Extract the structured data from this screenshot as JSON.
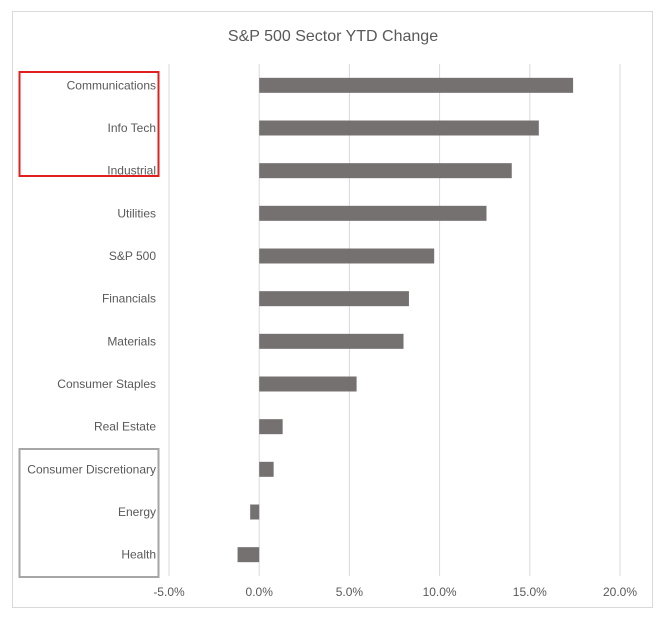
{
  "chart_data": {
    "type": "bar",
    "orientation": "horizontal",
    "title": "S&P 500 Sector YTD Change",
    "categories": [
      "Communications",
      "Info Tech",
      "Industrial",
      "Utilities",
      "S&P 500",
      "Financials",
      "Materials",
      "Consumer Staples",
      "Real Estate",
      "Consumer Discretionary",
      "Energy",
      "Health"
    ],
    "values": [
      17.4,
      15.5,
      14.0,
      12.6,
      9.7,
      8.3,
      8.0,
      5.4,
      1.3,
      0.8,
      -0.5,
      -1.2
    ],
    "xlim": [
      -5,
      20
    ],
    "xticks": [
      -5,
      0,
      5,
      10,
      15,
      20
    ],
    "xtick_labels": [
      "-5.0%",
      "0.0%",
      "5.0%",
      "10.0%",
      "15.0%",
      "20.0%"
    ],
    "xlabel": "",
    "ylabel": "",
    "grid": true,
    "bar_color": "#767171",
    "highlight_top_group": [
      "Communications",
      "Info Tech",
      "Industrial"
    ],
    "highlight_top_color": "#e02020",
    "highlight_bottom_group": [
      "Consumer Discretionary",
      "Energy",
      "Health"
    ],
    "highlight_bottom_color": "#a6a6a6"
  }
}
